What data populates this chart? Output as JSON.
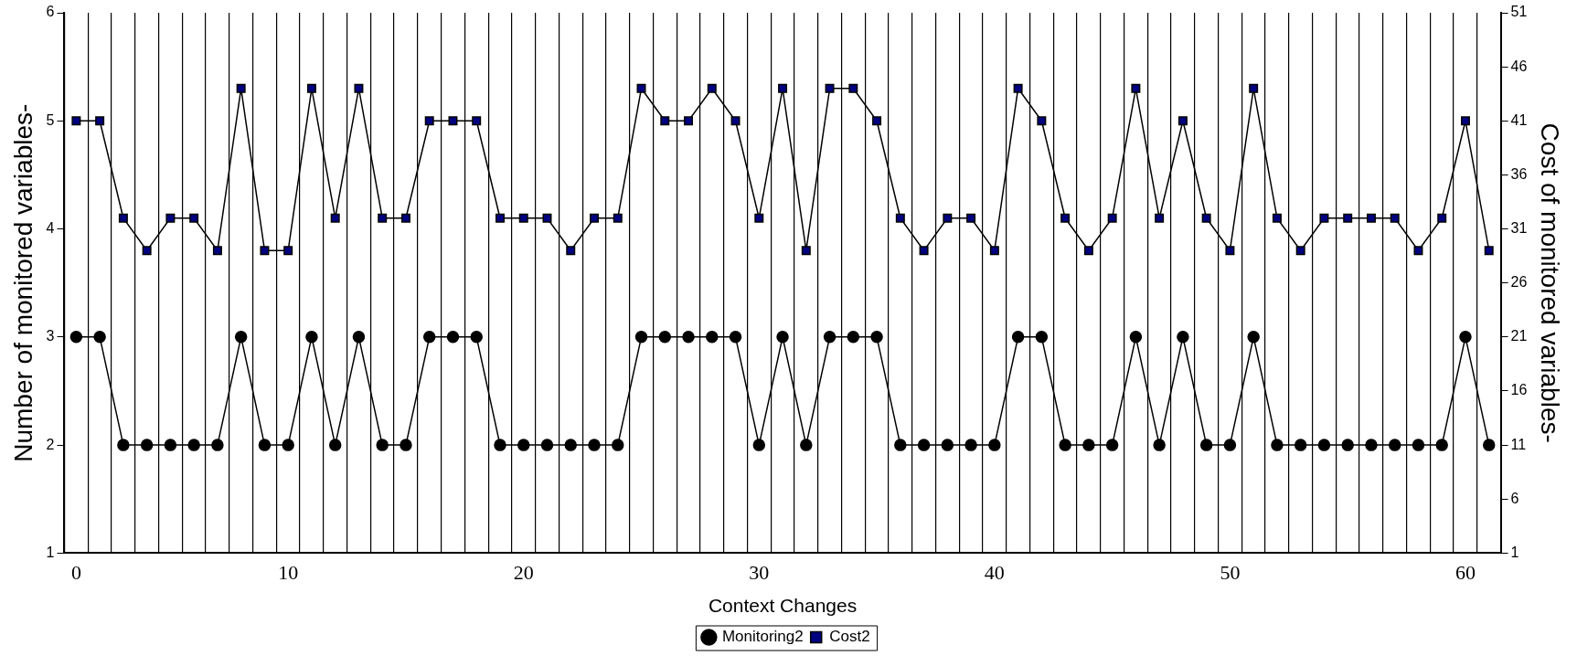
{
  "chart_data": {
    "type": "line",
    "xlabel": "Context Changes",
    "ylabel": "Number of monitored variables-",
    "y2label": "Cost of monitored variables-",
    "categories": [
      "0",
      null,
      null,
      null,
      null,
      null,
      null,
      null,
      null,
      "10",
      null,
      null,
      null,
      null,
      null,
      null,
      null,
      null,
      null,
      "20",
      null,
      null,
      null,
      null,
      null,
      null,
      null,
      null,
      null,
      "30",
      null,
      null,
      null,
      null,
      null,
      null,
      null,
      null,
      null,
      "40",
      null,
      null,
      null,
      null,
      null,
      null,
      null,
      null,
      null,
      "50",
      null,
      null,
      null,
      null,
      null,
      null,
      null,
      null,
      null,
      "60",
      null
    ],
    "series": [
      {
        "name": "Monitoring2",
        "color": "#000000",
        "marker": "circle",
        "values": [
          3,
          3,
          2,
          2,
          2,
          2,
          2,
          3,
          2,
          2,
          3,
          2,
          3,
          2,
          2,
          3,
          3,
          3,
          2,
          2,
          2,
          2,
          2,
          2,
          3,
          3,
          3,
          3,
          3,
          2,
          3,
          2,
          3,
          3,
          3,
          2,
          2,
          2,
          2,
          2,
          3,
          3,
          2,
          2,
          2,
          3,
          2,
          3,
          2,
          2,
          3,
          2,
          2,
          2,
          2,
          2,
          2,
          2,
          2,
          3,
          2
        ]
      },
      {
        "name": "Cost2",
        "color": "#000080",
        "marker": "square",
        "axis": "y2",
        "values": [
          41,
          41,
          32,
          29,
          32,
          32,
          29,
          44,
          29,
          29,
          44,
          32,
          44,
          32,
          32,
          41,
          41,
          41,
          32,
          32,
          32,
          29,
          32,
          32,
          44,
          41,
          41,
          44,
          41,
          32,
          44,
          29,
          44,
          44,
          41,
          32,
          29,
          32,
          32,
          29,
          44,
          41,
          32,
          29,
          32,
          44,
          32,
          41,
          32,
          29,
          44,
          32,
          29,
          32,
          32,
          32,
          32,
          29,
          32,
          41,
          29
        ]
      }
    ],
    "ylim": [
      1,
      6
    ],
    "yticks": [
      1,
      2,
      3,
      4,
      5,
      6
    ],
    "y2lim": [
      1,
      51
    ],
    "y2ticks": [
      1,
      6,
      11,
      16,
      21,
      26,
      31,
      36,
      41,
      46,
      51
    ],
    "grid": "x",
    "legend": "bottom",
    "line_style": "solid"
  }
}
